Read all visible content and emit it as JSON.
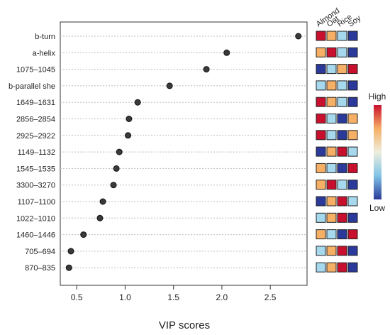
{
  "chart_data": {
    "type": "scatter",
    "xlabel": "VIP scores",
    "xlim": [
      0.33,
      2.88
    ],
    "xticks": [
      0.5,
      1.0,
      1.5,
      2.0,
      2.5
    ],
    "xtick_labels": [
      "0.5",
      "1.0",
      "1.5",
      "2.0",
      "2.5"
    ],
    "grid": "horizontal dotted lines",
    "features": [
      "b-turn",
      "a-helix",
      "1075–1045",
      "b-parallel she",
      "1649–1631",
      "2856–2854",
      "2925–2922",
      "1149–1132",
      "1545–1535",
      "3300–3270",
      "1107–1100",
      "1022–1010",
      "1460–1446",
      "705–694",
      "870–835"
    ],
    "values": [
      2.79,
      2.05,
      1.84,
      1.46,
      1.13,
      1.04,
      1.03,
      0.94,
      0.91,
      0.88,
      0.77,
      0.74,
      0.57,
      0.44,
      0.42
    ],
    "heatmap": {
      "columns": [
        "Almond",
        "Oat",
        "Rice",
        "Soy"
      ],
      "levels": [
        [
          "high",
          "mid-high",
          "mid-low",
          "low"
        ],
        [
          "mid-high",
          "high",
          "mid-low",
          "low"
        ],
        [
          "low",
          "mid-low",
          "mid-high",
          "high"
        ],
        [
          "mid-low",
          "mid-high",
          "mid-low",
          "low"
        ],
        [
          "high",
          "mid-high",
          "mid-low",
          "low"
        ],
        [
          "high",
          "mid-low",
          "low",
          "mid-high"
        ],
        [
          "high",
          "mid-low",
          "low",
          "mid-high"
        ],
        [
          "low",
          "mid-high",
          "high",
          "mid-low"
        ],
        [
          "mid-high",
          "mid-low",
          "low",
          "high"
        ],
        [
          "mid-high",
          "high",
          "mid-low",
          "low"
        ],
        [
          "low",
          "mid-high",
          "high",
          "mid-low"
        ],
        [
          "mid-low",
          "mid-high",
          "high",
          "low"
        ],
        [
          "mid-high",
          "mid-low",
          "low",
          "high"
        ],
        [
          "mid-low",
          "mid-high",
          "high",
          "low"
        ],
        [
          "mid-low",
          "mid-high",
          "high",
          "low"
        ]
      ],
      "colors": {
        "high": "#c8102e",
        "mid-high": "#f6b066",
        "mid-low": "#a6d9ee",
        "low": "#2b3a9a"
      }
    },
    "colorbar": {
      "high_label": "High",
      "low_label": "Low"
    },
    "point_color": "#3a3a3a"
  }
}
